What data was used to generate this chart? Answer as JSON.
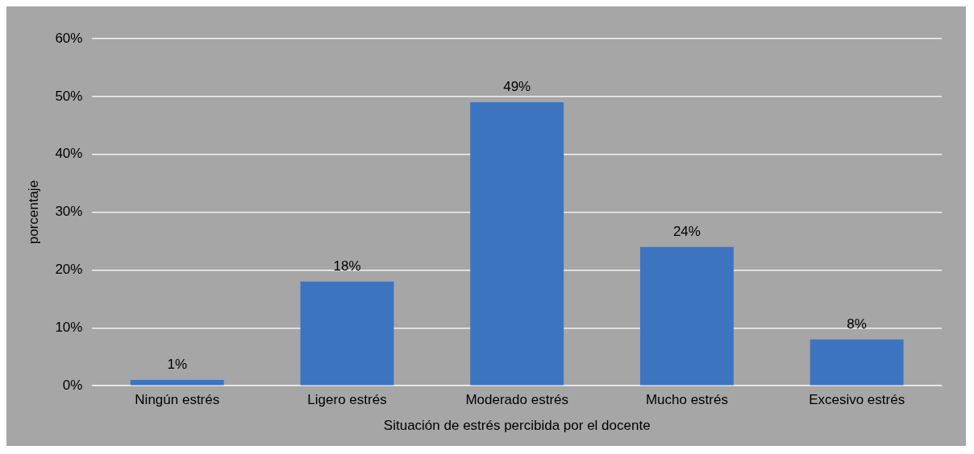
{
  "chart_data": {
    "type": "bar",
    "xlabel": "Situación de estrés percibida por el docente",
    "ylabel": "porcentaje",
    "categories": [
      "Ningún estrés",
      "Ligero estrés",
      "Moderado estrés",
      "Mucho estrés",
      "Excesivo estrés"
    ],
    "values": [
      1,
      18,
      49,
      24,
      8
    ],
    "value_labels": [
      "1%",
      "18%",
      "49%",
      "24%",
      "8%"
    ],
    "color": "#3d74c0",
    "ylim": [
      0,
      60
    ],
    "yticks": [
      {
        "value": 0,
        "label": "0%"
      },
      {
        "value": 10,
        "label": "10%"
      },
      {
        "value": 20,
        "label": "20%"
      },
      {
        "value": 30,
        "label": "30%"
      },
      {
        "value": 40,
        "label": "40%"
      },
      {
        "value": 50,
        "label": "50%"
      },
      {
        "value": 60,
        "label": "60%"
      }
    ],
    "grid": "y",
    "legend": false
  }
}
